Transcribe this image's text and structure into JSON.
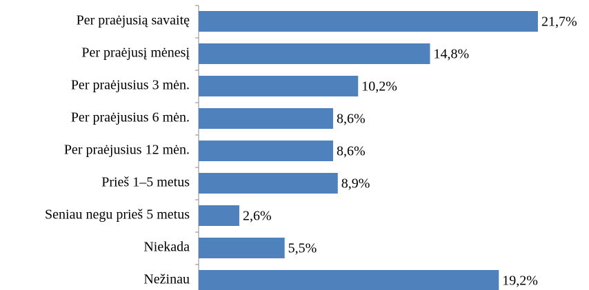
{
  "chart_data": {
    "type": "bar",
    "orientation": "horizontal",
    "categories": [
      "Per praėjusią savaitę",
      "Per praėjusį mėnesį",
      "Per praėjusius 3 mėn.",
      "Per praėjusius 6 mėn.",
      "Per praėjusius 12 mėn.",
      "Prieš 1–5 metus",
      "Seniau negu prieš 5 metus",
      "Niekada",
      "Nežinau"
    ],
    "values": [
      21.7,
      14.8,
      10.2,
      8.6,
      8.6,
      8.9,
      2.6,
      5.5,
      19.2
    ],
    "value_labels": [
      "21,7%",
      "14,8%",
      "10,2%",
      "8,6%",
      "8,6%",
      "8,9%",
      "2,6%",
      "5,5%",
      "19,2%"
    ],
    "color": "#4f81bd"
  }
}
